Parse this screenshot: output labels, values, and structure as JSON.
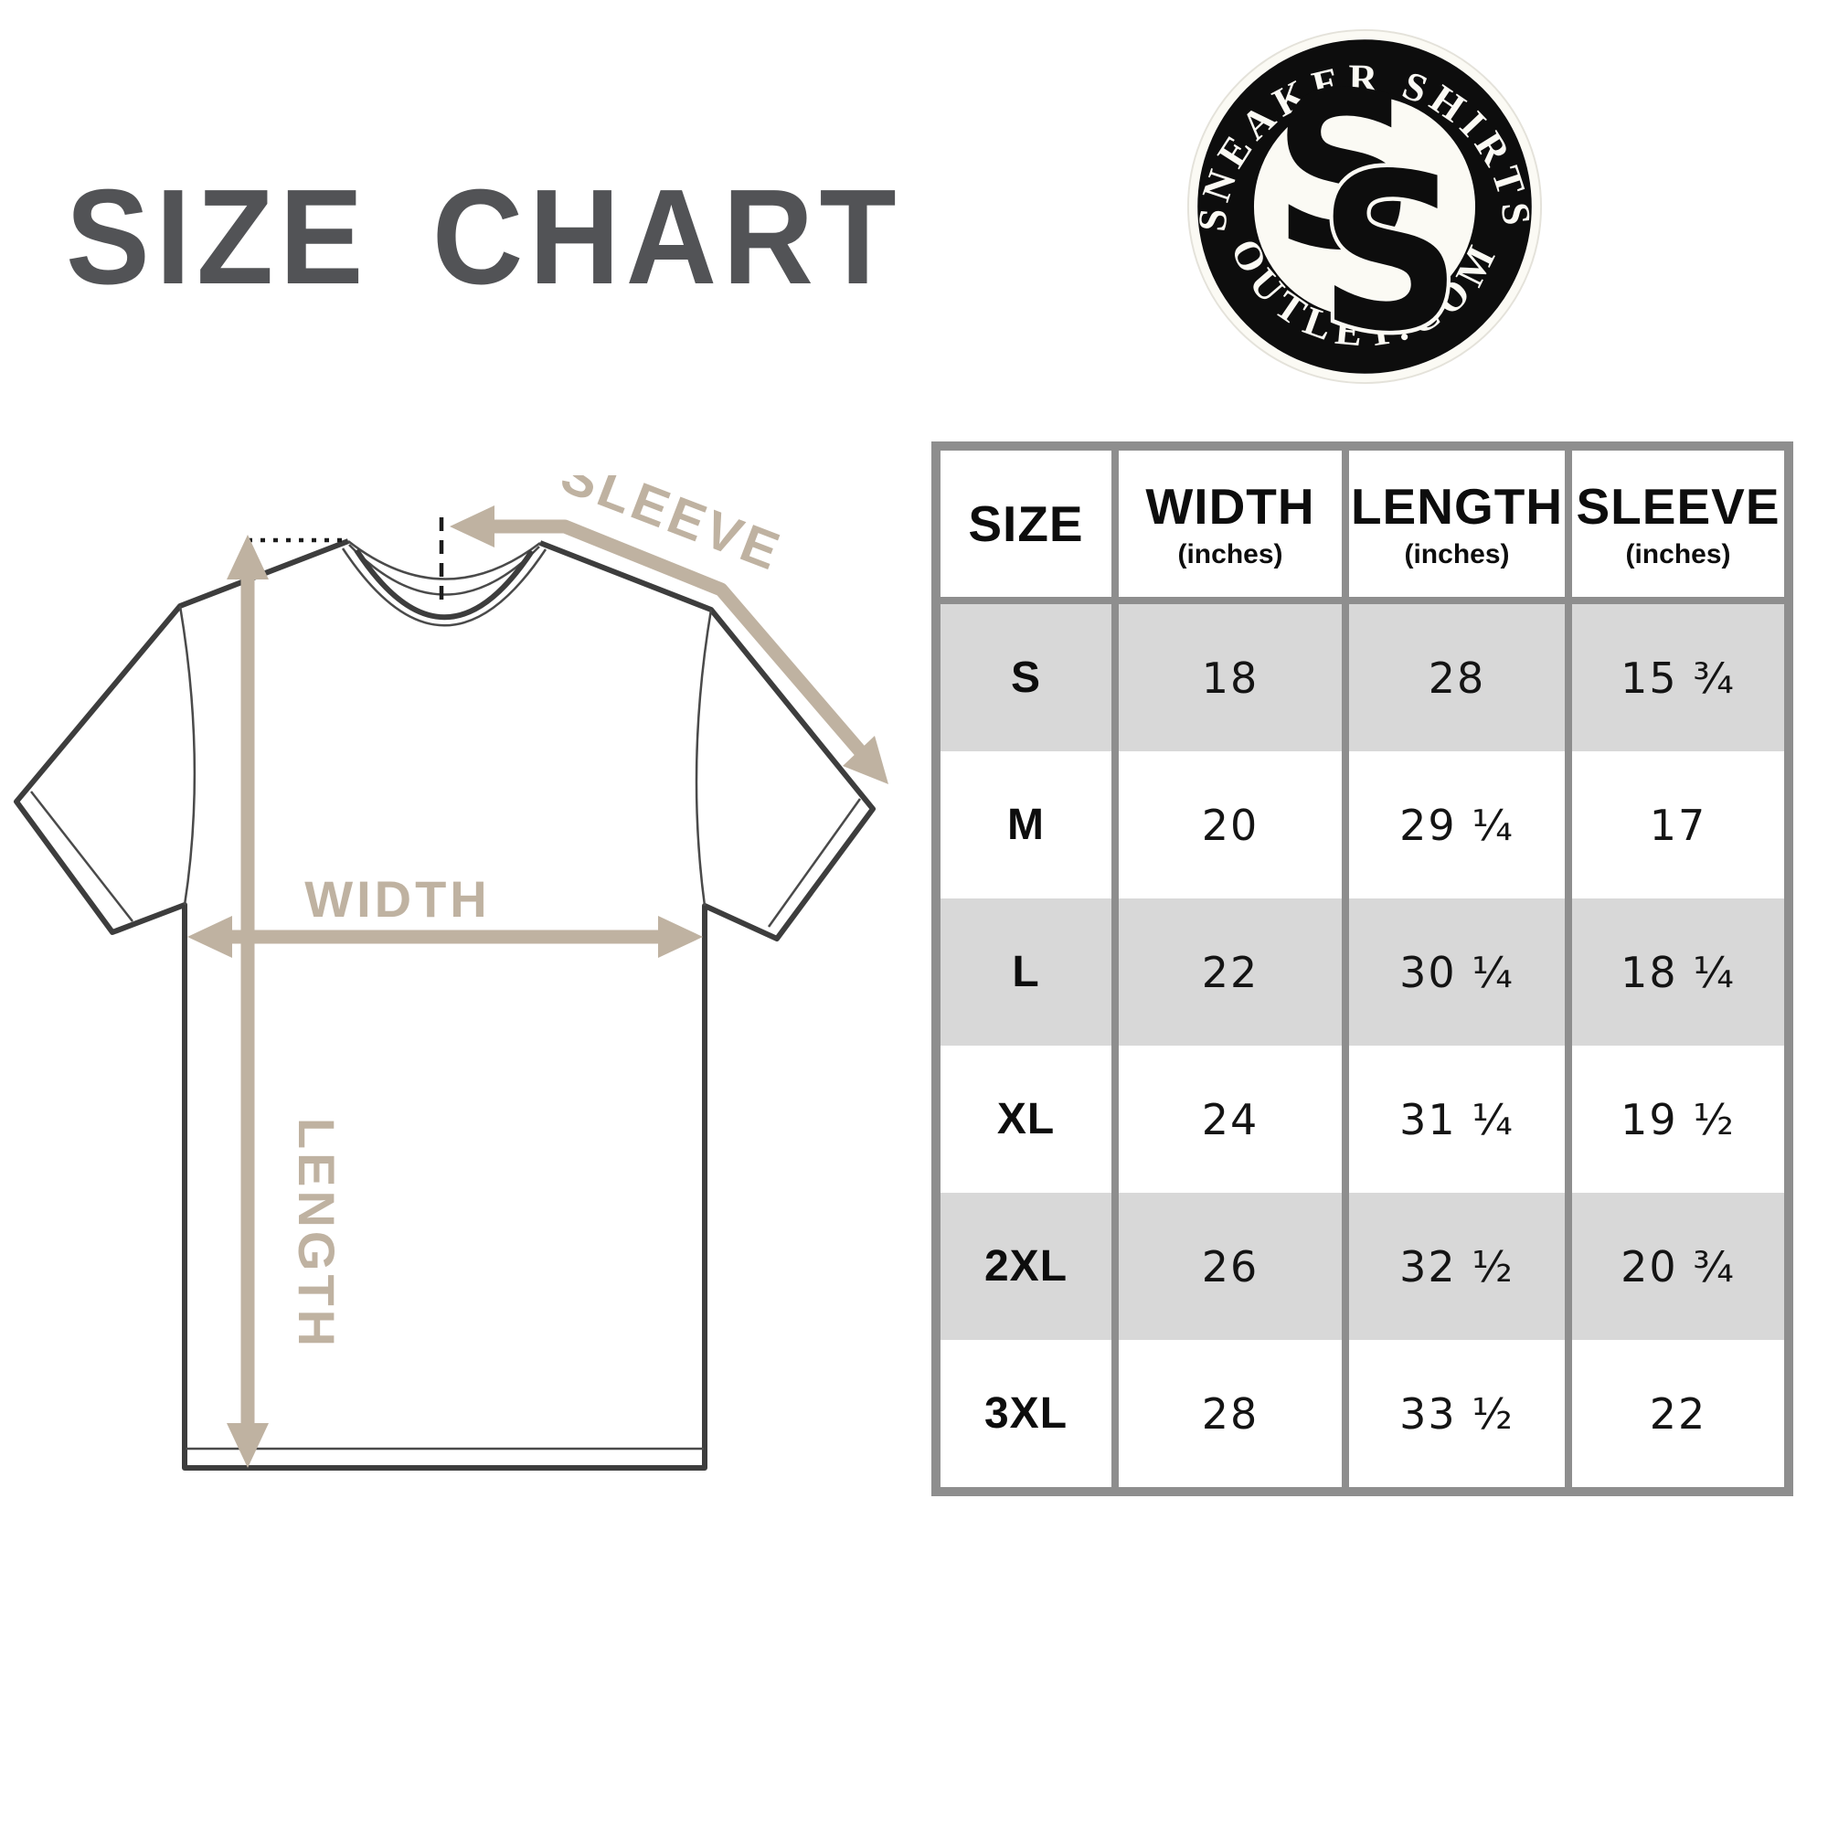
{
  "title": "SIZE CHART",
  "logo": {
    "arc_top": "SNEAKER SHIRTS",
    "arc_bottom": "OUTLET.COM",
    "monogram_s1": "S",
    "monogram_s2": "S",
    "ring_color": "#0d0d0d",
    "badge_bg": "#fbfaf4"
  },
  "diagram": {
    "sleeve_label": "SLEEVE",
    "width_label": "WIDTH",
    "length_label": "LENGTH",
    "arrow_color": "#bfb2a1",
    "outline_color": "#3d3d3d"
  },
  "table": {
    "border_color": "#8e8e8e",
    "stripe_color": "#d8d8d8",
    "headers": [
      {
        "label": "SIZE",
        "sub": ""
      },
      {
        "label": "WIDTH",
        "sub": "(inches)"
      },
      {
        "label": "LENGTH",
        "sub": "(inches)"
      },
      {
        "label": "SLEEVE",
        "sub": "(inches)"
      }
    ],
    "rows": [
      {
        "size": "S",
        "width": "18",
        "length": "28",
        "sleeve": "15 ¾",
        "shaded": true
      },
      {
        "size": "M",
        "width": "20",
        "length": "29 ¼",
        "sleeve": "17",
        "shaded": false
      },
      {
        "size": "L",
        "width": "22",
        "length": "30 ¼",
        "sleeve": "18 ¼",
        "shaded": true
      },
      {
        "size": "XL",
        "width": "24",
        "length": "31 ¼",
        "sleeve": "19 ½",
        "shaded": false
      },
      {
        "size": "2XL",
        "width": "26",
        "length": "32 ½",
        "sleeve": "20 ¾",
        "shaded": true
      },
      {
        "size": "3XL",
        "width": "28",
        "length": "33 ½",
        "sleeve": "22",
        "shaded": false
      }
    ]
  },
  "chart_data": {
    "type": "table",
    "title": "SIZE CHART",
    "columns": [
      "SIZE",
      "WIDTH (inches)",
      "LENGTH (inches)",
      "SLEEVE (inches)"
    ],
    "rows": [
      [
        "S",
        "18",
        "28",
        "15 ¾"
      ],
      [
        "M",
        "20",
        "29 ¼",
        "17"
      ],
      [
        "L",
        "22",
        "30 ¼",
        "18 ¼"
      ],
      [
        "XL",
        "24",
        "31 ¼",
        "19 ½"
      ],
      [
        "2XL",
        "26",
        "32 ½",
        "20 ¾"
      ],
      [
        "3XL",
        "28",
        "33 ½",
        "22"
      ]
    ]
  }
}
